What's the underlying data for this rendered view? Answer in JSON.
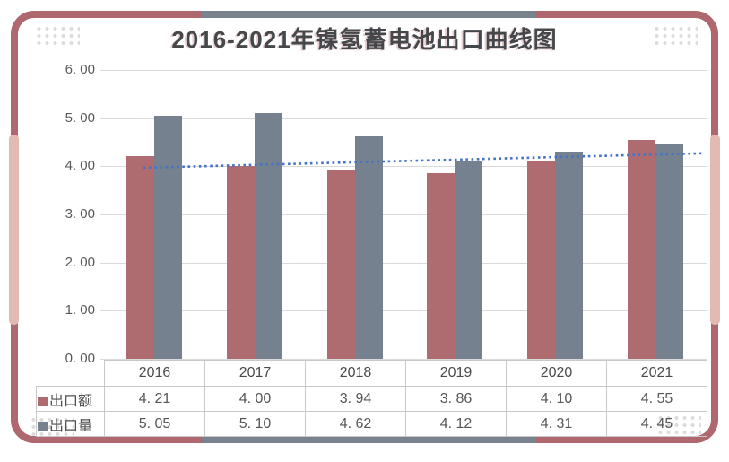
{
  "chart_data": {
    "type": "bar",
    "title": "2016-2021年镍氢蓄电池出口曲线图",
    "categories": [
      "2016",
      "2017",
      "2018",
      "2019",
      "2020",
      "2021"
    ],
    "series": [
      {
        "key": "export-value",
        "name": "出口额",
        "color": "#AE6C70",
        "values": [
          4.21,
          4.0,
          3.94,
          3.86,
          4.1,
          4.55
        ]
      },
      {
        "key": "export-volume",
        "name": "出口量",
        "color": "#75818F",
        "values": [
          5.05,
          5.1,
          4.62,
          4.12,
          4.31,
          4.45
        ]
      }
    ],
    "ylim": [
      0,
      6
    ],
    "ytick_step": 1,
    "ytick_labels": [
      "0. 00",
      "1. 00",
      "2. 00",
      "3. 00",
      "4. 00",
      "5. 00",
      "6. 00"
    ],
    "grid": true,
    "legend_position": "table-left",
    "trendline": {
      "series": "出口额",
      "color": "#4472C4",
      "style": "dotted",
      "start_value": 3.97,
      "end_value": 4.27
    }
  },
  "table": {
    "header_row": [
      "",
      "2016",
      "2017",
      "2018",
      "2019",
      "2020",
      "2021"
    ],
    "rows": [
      {
        "key": "export-value",
        "label": "出口额",
        "legend_color": "#AE6C70",
        "values": [
          "4. 21",
          "4. 00",
          "3. 94",
          "3. 86",
          "4. 10",
          "4. 55"
        ]
      },
      {
        "key": "export-volume",
        "label": "出口量",
        "legend_color": "#75818F",
        "values": [
          "5. 05",
          "5. 10",
          "4. 62",
          "4. 12",
          "4. 31",
          "4. 45"
        ]
      }
    ]
  },
  "frame": {
    "border_color": "#AF686D",
    "accent_gray": "#78838F",
    "accent_pink": "#E2BAB1",
    "dot_color": "#DCDCDC"
  }
}
